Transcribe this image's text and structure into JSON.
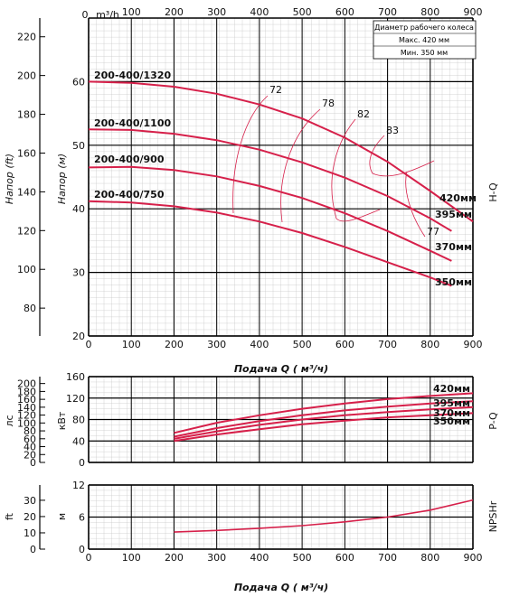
{
  "chart_data": [
    {
      "type": "line",
      "name": "hq",
      "top_axis_label": "m³/h",
      "x_ticks": [
        0,
        100,
        200,
        300,
        400,
        500,
        600,
        700,
        800,
        900
      ],
      "xlabel": "Подача Q ( м³/ч)",
      "ylabel_m": "Напор (м)",
      "ylabel_ft": "Напор (ft)",
      "side_label": "H-Q",
      "xlim": [
        0,
        900
      ],
      "ylim_m": [
        20,
        70
      ],
      "ylim_ft": [
        65.6,
        229.7
      ],
      "y_ticks_m": [
        20,
        30,
        40,
        50,
        60
      ],
      "y_ticks_ft": [
        80,
        100,
        120,
        140,
        160,
        180,
        200,
        220
      ],
      "legend": {
        "title": "Диаметр рабочего колеса",
        "max": "Макс. 420 мм",
        "min": "Мин.  350 мм"
      },
      "series": [
        {
          "name": "200-400/1320",
          "end_label": "420мм",
          "x": [
            0,
            100,
            200,
            300,
            400,
            500,
            600,
            700,
            800,
            900
          ],
          "y": [
            60,
            59.8,
            59.2,
            58.1,
            56.4,
            54.2,
            51.2,
            47.4,
            42.8,
            38
          ]
        },
        {
          "name": "200-400/1100",
          "end_label": "395мм",
          "x": [
            0,
            100,
            200,
            300,
            400,
            500,
            600,
            700,
            800,
            850
          ],
          "y": [
            52.5,
            52.4,
            51.8,
            50.8,
            49.3,
            47.3,
            44.9,
            42.0,
            38.5,
            36.5
          ]
        },
        {
          "name": "200-400/900",
          "end_label": "370мм",
          "x": [
            0,
            100,
            200,
            300,
            400,
            500,
            600,
            700,
            800,
            850
          ],
          "y": [
            46.5,
            46.6,
            46.1,
            45.1,
            43.6,
            41.7,
            39.3,
            36.5,
            33.4,
            31.8
          ]
        },
        {
          "name": "200-400/750",
          "end_label": "350мм",
          "x": [
            0,
            100,
            200,
            300,
            400,
            500,
            600,
            700,
            800,
            850
          ],
          "y": [
            41.2,
            41.0,
            40.4,
            39.4,
            38.0,
            36.2,
            34.0,
            31.6,
            29.2,
            27.9
          ]
        }
      ],
      "efficiency_labels": [
        "72",
        "78",
        "82",
        "83",
        "77"
      ]
    },
    {
      "type": "line",
      "name": "power",
      "ylabel_hp": "лс",
      "ylabel_kw": "кВт",
      "side_label": "P-Q",
      "xlim": [
        0,
        900
      ],
      "ylim_kw": [
        0,
        160
      ],
      "y_ticks_kw": [
        0,
        40,
        80,
        120,
        160
      ],
      "y_ticks_hp": [
        0,
        20,
        40,
        60,
        80,
        100,
        120,
        140,
        160,
        180,
        200
      ],
      "series": [
        {
          "name": "420мм",
          "x": [
            200,
            300,
            400,
            500,
            600,
            700,
            800,
            900
          ],
          "y": [
            55,
            74,
            88,
            100,
            110,
            118,
            124,
            129
          ]
        },
        {
          "name": "395мм",
          "x": [
            200,
            300,
            400,
            500,
            600,
            700,
            800,
            900
          ],
          "y": [
            48,
            64,
            77,
            88,
            97,
            104,
            110,
            114
          ]
        },
        {
          "name": "370мм",
          "x": [
            200,
            300,
            400,
            500,
            600,
            700,
            800,
            900
          ],
          "y": [
            44,
            58,
            70,
            80,
            88,
            94,
            99,
            103
          ]
        },
        {
          "name": "350мм",
          "x": [
            200,
            300,
            400,
            500,
            600,
            700,
            800,
            900
          ],
          "y": [
            40,
            52,
            62,
            71,
            78,
            84,
            88,
            92
          ]
        }
      ]
    },
    {
      "type": "line",
      "name": "npsh",
      "ylabel_ft": "ft",
      "ylabel_m": "м",
      "side_label": "NPSHr",
      "xlabel": "Подача Q ( м³/ч)",
      "xlim": [
        0,
        900
      ],
      "ylim_m": [
        0,
        12
      ],
      "y_ticks_m": [
        0,
        6,
        12
      ],
      "y_ticks_ft": [
        0,
        10,
        20,
        30
      ],
      "series": [
        {
          "name": "NPSHr",
          "x": [
            200,
            300,
            400,
            500,
            600,
            700,
            800,
            900
          ],
          "y": [
            3.2,
            3.5,
            3.9,
            4.4,
            5.1,
            6.0,
            7.3,
            9.2
          ]
        }
      ]
    }
  ]
}
